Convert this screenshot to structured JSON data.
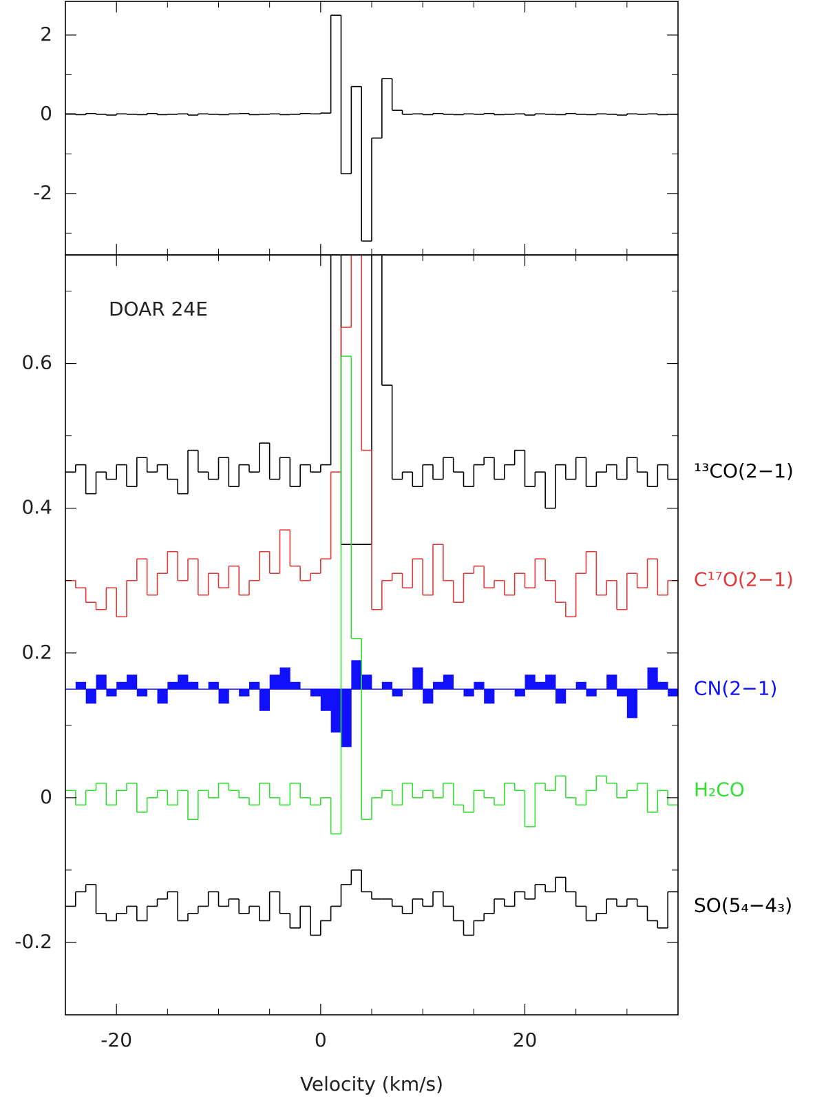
{
  "chart_data": [
    {
      "type": "step",
      "x": [
        -24.5,
        -23.5,
        -22.5,
        -21.5,
        -20.5,
        -19.5,
        -18.5,
        -17.5,
        -16.5,
        -15.5,
        -14.5,
        -13.5,
        -12.5,
        -11.5,
        -10.5,
        -9.5,
        -8.5,
        -7.5,
        -6.5,
        -5.5,
        -4.5,
        -3.5,
        -2.5,
        -1.5,
        -0.5,
        0.5,
        1.5,
        2.5,
        3.5,
        4.5,
        5.5,
        6.5,
        7.5,
        8.5,
        9.5,
        10.5,
        11.5,
        12.5,
        13.5,
        14.5,
        15.5,
        16.5,
        17.5,
        18.5,
        19.5,
        20.5,
        21.5,
        22.5,
        23.5,
        24.5,
        25.5,
        26.5,
        27.5,
        28.5,
        29.5,
        30.5,
        31.5,
        32.5,
        33.5,
        34.5
      ],
      "values": [
        0.01,
        -0.01,
        0.02,
        0,
        -0.02,
        0.01,
        0,
        -0.01,
        0.02,
        -0.01,
        0,
        0.01,
        -0.02,
        0.01,
        0,
        -0.01,
        0.01,
        0.02,
        -0.01,
        0,
        0.01,
        -0.01,
        0,
        0.02,
        0.01,
        0.03,
        2.5,
        -1.5,
        0.7,
        -3.2,
        -0.6,
        0.9,
        0.1,
        0,
        0.01,
        -0.01,
        0.02,
        0,
        -0.01,
        0.01,
        0,
        0.02,
        -0.01,
        0,
        0.01,
        -0.02,
        0.01,
        0,
        -0.01,
        0.02,
        0,
        -0.01,
        0.01,
        0,
        -0.02,
        0.01,
        0,
        0.01,
        -0.01,
        0
      ],
      "color": "#000000",
      "xlim": [
        -25,
        35
      ],
      "ylim": [
        -3.55,
        2.85
      ],
      "xticks": [
        -20,
        0,
        20
      ],
      "xminor": [
        -15,
        -10,
        -5,
        5,
        10,
        15,
        25,
        30
      ],
      "xtick_labels": false,
      "yticks": [
        -2,
        0,
        2
      ],
      "yminor": [
        -3,
        -1,
        1
      ]
    },
    {
      "type": "step",
      "annotation": "DOAR 24E",
      "xlabel": "Velocity (km/s)",
      "x": [
        -24.5,
        -23.5,
        -22.5,
        -21.5,
        -20.5,
        -19.5,
        -18.5,
        -17.5,
        -16.5,
        -15.5,
        -14.5,
        -13.5,
        -12.5,
        -11.5,
        -10.5,
        -9.5,
        -8.5,
        -7.5,
        -6.5,
        -5.5,
        -4.5,
        -3.5,
        -2.5,
        -1.5,
        -0.5,
        0.5,
        1.5,
        2.5,
        3.5,
        4.5,
        5.5,
        6.5,
        7.5,
        8.5,
        9.5,
        10.5,
        11.5,
        12.5,
        13.5,
        14.5,
        15.5,
        16.5,
        17.5,
        18.5,
        19.5,
        20.5,
        21.5,
        22.5,
        23.5,
        24.5,
        25.5,
        26.5,
        27.5,
        28.5,
        29.5,
        30.5,
        31.5,
        32.5,
        33.5,
        34.5
      ],
      "series": [
        {
          "name": "¹³CO(2−1)",
          "color": "#000000",
          "values": [
            0.45,
            0.46,
            0.42,
            0.45,
            0.44,
            0.46,
            0.43,
            0.47,
            0.45,
            0.46,
            0.44,
            0.42,
            0.48,
            0.45,
            0.44,
            0.47,
            0.43,
            0.46,
            0.45,
            0.49,
            0.44,
            0.47,
            0.43,
            0.46,
            0.45,
            0.46,
            0.9,
            0.35,
            0.35,
            0.35,
            0.9,
            0.57,
            0.44,
            0.45,
            0.43,
            0.46,
            0.44,
            0.47,
            0.45,
            0.43,
            0.46,
            0.47,
            0.44,
            0.46,
            0.48,
            0.43,
            0.45,
            0.4,
            0.46,
            0.44,
            0.47,
            0.43,
            0.45,
            0.46,
            0.44,
            0.47,
            0.45,
            0.43,
            0.46,
            0.44
          ]
        },
        {
          "name": "C¹⁷O(2−1)",
          "color": "#e03a3a",
          "values": [
            0.3,
            0.29,
            0.27,
            0.26,
            0.29,
            0.25,
            0.3,
            0.33,
            0.28,
            0.31,
            0.34,
            0.3,
            0.33,
            0.28,
            0.31,
            0.29,
            0.32,
            0.28,
            0.3,
            0.34,
            0.31,
            0.37,
            0.32,
            0.3,
            0.31,
            0.33,
            0.45,
            0.65,
            0.9,
            0.48,
            0.26,
            0.3,
            0.31,
            0.29,
            0.33,
            0.28,
            0.35,
            0.3,
            0.27,
            0.31,
            0.32,
            0.29,
            0.3,
            0.28,
            0.31,
            0.29,
            0.33,
            0.3,
            0.27,
            0.25,
            0.31,
            0.34,
            0.28,
            0.3,
            0.26,
            0.31,
            0.29,
            0.33,
            0.28,
            0.3
          ]
        },
        {
          "name": "CN(2−1)",
          "color": "#1010ff",
          "fill_baseline": 0.15,
          "values": [
            0.15,
            0.16,
            0.13,
            0.17,
            0.14,
            0.16,
            0.17,
            0.14,
            0.15,
            0.13,
            0.16,
            0.17,
            0.16,
            0.15,
            0.16,
            0.13,
            0.15,
            0.14,
            0.16,
            0.12,
            0.17,
            0.18,
            0.16,
            0.15,
            0.14,
            0.12,
            0.09,
            0.07,
            0.19,
            0.17,
            0.15,
            0.16,
            0.14,
            0.15,
            0.18,
            0.13,
            0.16,
            0.17,
            0.15,
            0.14,
            0.16,
            0.13,
            0.15,
            0.15,
            0.14,
            0.17,
            0.16,
            0.17,
            0.13,
            0.15,
            0.16,
            0.14,
            0.15,
            0.17,
            0.14,
            0.11,
            0.15,
            0.18,
            0.16,
            0.14
          ]
        },
        {
          "name": "H₂CO",
          "color": "#33dd33",
          "values": [
            0.01,
            -0.01,
            0.01,
            0.02,
            -0.01,
            0.01,
            0.02,
            -0.02,
            0.0,
            0.01,
            -0.01,
            0.01,
            -0.03,
            0.01,
            0.0,
            0.02,
            0.01,
            0.0,
            -0.01,
            0.02,
            0.0,
            -0.01,
            0.02,
            0.0,
            -0.01,
            0.0,
            -0.05,
            0.61,
            0.22,
            -0.03,
            0.0,
            0.01,
            -0.01,
            0.02,
            0.0,
            0.01,
            0.0,
            0.02,
            -0.01,
            -0.02,
            0.01,
            0.0,
            -0.01,
            0.02,
            0.01,
            -0.04,
            0.02,
            0.01,
            0.03,
            0.0,
            -0.01,
            0.01,
            0.03,
            0.02,
            0.0,
            0.01,
            0.02,
            -0.02,
            0.01,
            -0.01
          ]
        },
        {
          "name": "SO(5₄−4₃)",
          "color": "#000000",
          "values": [
            -0.15,
            -0.13,
            -0.12,
            -0.16,
            -0.17,
            -0.16,
            -0.15,
            -0.17,
            -0.15,
            -0.14,
            -0.13,
            -0.17,
            -0.16,
            -0.15,
            -0.13,
            -0.15,
            -0.14,
            -0.16,
            -0.15,
            -0.17,
            -0.13,
            -0.16,
            -0.18,
            -0.15,
            -0.19,
            -0.17,
            -0.15,
            -0.12,
            -0.1,
            -0.13,
            -0.14,
            -0.14,
            -0.15,
            -0.16,
            -0.14,
            -0.15,
            -0.13,
            -0.15,
            -0.17,
            -0.19,
            -0.17,
            -0.16,
            -0.14,
            -0.15,
            -0.13,
            -0.14,
            -0.12,
            -0.13,
            -0.11,
            -0.13,
            -0.15,
            -0.17,
            -0.16,
            -0.14,
            -0.15,
            -0.14,
            -0.15,
            -0.17,
            -0.18,
            -0.13
          ]
        }
      ],
      "xlim": [
        -25,
        35
      ],
      "ylim": [
        -0.3,
        0.75
      ],
      "xticks": [
        -20,
        0,
        20
      ],
      "xminor": [
        -15,
        -10,
        -5,
        5,
        10,
        15,
        25,
        30
      ],
      "xtick_labels": true,
      "yticks": [
        -0.2,
        0,
        0.2,
        0.4,
        0.6
      ],
      "yminor": [
        -0.1,
        0.1,
        0.3,
        0.5,
        0.7
      ]
    }
  ]
}
